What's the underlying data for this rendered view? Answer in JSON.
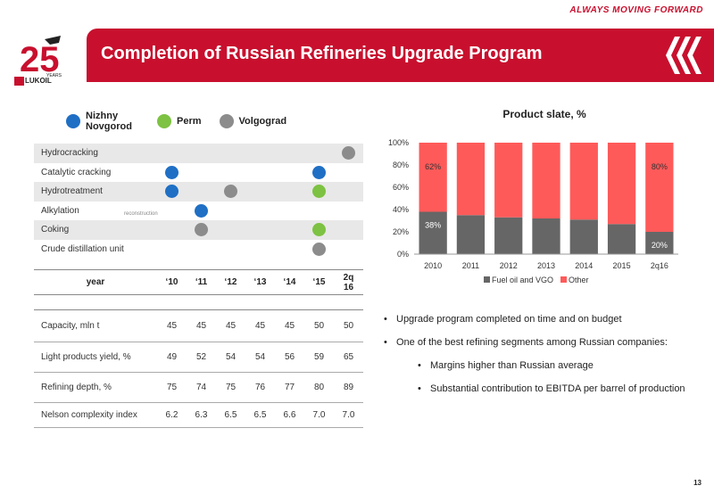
{
  "header": {
    "tagline": "ALWAYS MOVING FORWARD",
    "title": "Completion of Russian Refineries Upgrade Program",
    "logo_text": "LUKOIL",
    "logo_number": "25",
    "logo_years": "YEARS"
  },
  "legend": [
    {
      "label": "Nizhny Novgorod",
      "color": "#1f6fc5"
    },
    {
      "label": "Perm",
      "color": "#7dc242"
    },
    {
      "label": "Volgograd",
      "color": "#8c8c8c"
    }
  ],
  "processes": [
    {
      "name": "Hydrocracking",
      "cells": [
        "",
        "",
        "",
        "",
        "",
        "",
        "volgograd"
      ]
    },
    {
      "name": "Catalytic cracking",
      "cells": [
        "nizhny",
        "",
        "",
        "",
        "",
        "nizhny",
        ""
      ]
    },
    {
      "name": "Hydrotreatment",
      "cells": [
        "nizhny",
        "",
        "volgograd",
        "",
        "",
        "perm",
        ""
      ]
    },
    {
      "name": "Alkylation",
      "cells": [
        "",
        "nizhny",
        "",
        "",
        "",
        "",
        ""
      ]
    },
    {
      "name": "Coking",
      "cells": [
        "",
        "volgograd",
        "",
        "",
        "",
        "perm",
        ""
      ]
    },
    {
      "name": "Crude distillation unit",
      "cells": [
        "",
        "",
        "",
        "",
        "",
        "volgograd",
        ""
      ]
    }
  ],
  "reconstruction_note": "reconstruction",
  "year_header": {
    "label": "year",
    "years": [
      "‘10",
      "‘11",
      "‘12",
      "‘13",
      "‘14",
      "‘15",
      "2q 16"
    ]
  },
  "metrics": [
    {
      "name": "Capacity, mln t",
      "values": [
        "45",
        "45",
        "45",
        "45",
        "45",
        "50",
        "50"
      ]
    },
    {
      "name": "Light products yield, %",
      "values": [
        "49",
        "52",
        "54",
        "54",
        "56",
        "59",
        "65"
      ]
    },
    {
      "name": "Refining depth, %",
      "values": [
        "75",
        "74",
        "75",
        "76",
        "77",
        "80",
        "89"
      ]
    },
    {
      "name": "Nelson complexity index",
      "values": [
        "6.2",
        "6.3",
        "6.5",
        "6.5",
        "6.6",
        "7.0",
        "7.0"
      ]
    }
  ],
  "chart_data": {
    "type": "bar",
    "stacked": true,
    "title": "Product slate, %",
    "categories": [
      "2010",
      "2011",
      "2012",
      "2013",
      "2014",
      "2015",
      "2q16"
    ],
    "series": [
      {
        "name": "Fuel oil and VGO",
        "color": "#666666",
        "values": [
          38,
          35,
          33,
          32,
          31,
          27,
          20
        ]
      },
      {
        "name": "Other",
        "color": "#ff5a5a",
        "values": [
          62,
          65,
          67,
          68,
          69,
          73,
          80
        ]
      }
    ],
    "data_labels": [
      {
        "category": "2010",
        "series": "Fuel oil and VGO",
        "text": "38%"
      },
      {
        "category": "2010",
        "series": "Other",
        "text": "62%"
      },
      {
        "category": "2q16",
        "series": "Fuel oil and VGO",
        "text": "20%"
      },
      {
        "category": "2q16",
        "series": "Other",
        "text": "80%"
      }
    ],
    "y_ticks": [
      "0%",
      "20%",
      "40%",
      "60%",
      "80%",
      "100%"
    ],
    "ylim": [
      0,
      100
    ],
    "legend_position": "bottom",
    "grid": false
  },
  "bullets": [
    {
      "text": "Upgrade program completed on time and on budget",
      "level": 1
    },
    {
      "text": "One of the best refining segments among Russian companies:",
      "level": 1
    },
    {
      "text": "Margins higher than Russian average",
      "level": 2
    },
    {
      "text": "Substantial contribution to EBITDA per barrel of production",
      "level": 2
    }
  ],
  "page_number": "13",
  "colors": {
    "brand_red": "#c8102e",
    "nizhny": "#1f6fc5",
    "perm": "#7dc242",
    "volgograd": "#8c8c8c"
  }
}
